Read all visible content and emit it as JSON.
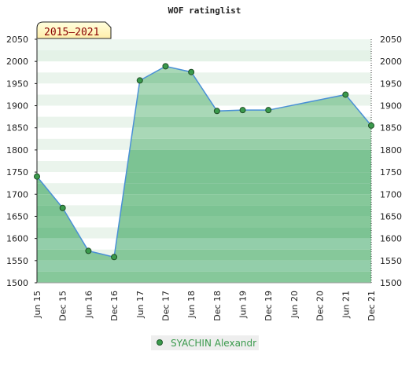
{
  "chart_data": {
    "type": "area",
    "title": "WOF ratinglist",
    "badge": "2015–2021",
    "categories": [
      "Jun 15",
      "Dec 15",
      "Jun 16",
      "Dec 16",
      "Jun 17",
      "Dec 17",
      "Jun 18",
      "Dec 18",
      "Jun 19",
      "Dec 19",
      "Jun 20",
      "Dec 20",
      "Jun 21",
      "Dec 21"
    ],
    "series": [
      {
        "name": "SYACHIN Alexandr",
        "values": [
          1740,
          1669,
          1572,
          1558,
          1957,
          1989,
          1976,
          1888,
          1890,
          1890,
          null,
          null,
          1925,
          1855
        ]
      }
    ],
    "yticks": [
      "2050",
      "2000",
      "1950",
      "1900",
      "1850",
      "1800",
      "1750",
      "1700",
      "1650",
      "1600",
      "1550",
      "1500"
    ],
    "ylim": [
      1500,
      2050
    ],
    "grid": false,
    "legend": "bottom-center",
    "colors": {
      "line": "#4a90d6",
      "marker": "#3a9a4c",
      "legend_text": "#3a9a4c",
      "badge_bg": "#ffffcc",
      "badge_text": "#8a0000"
    }
  }
}
